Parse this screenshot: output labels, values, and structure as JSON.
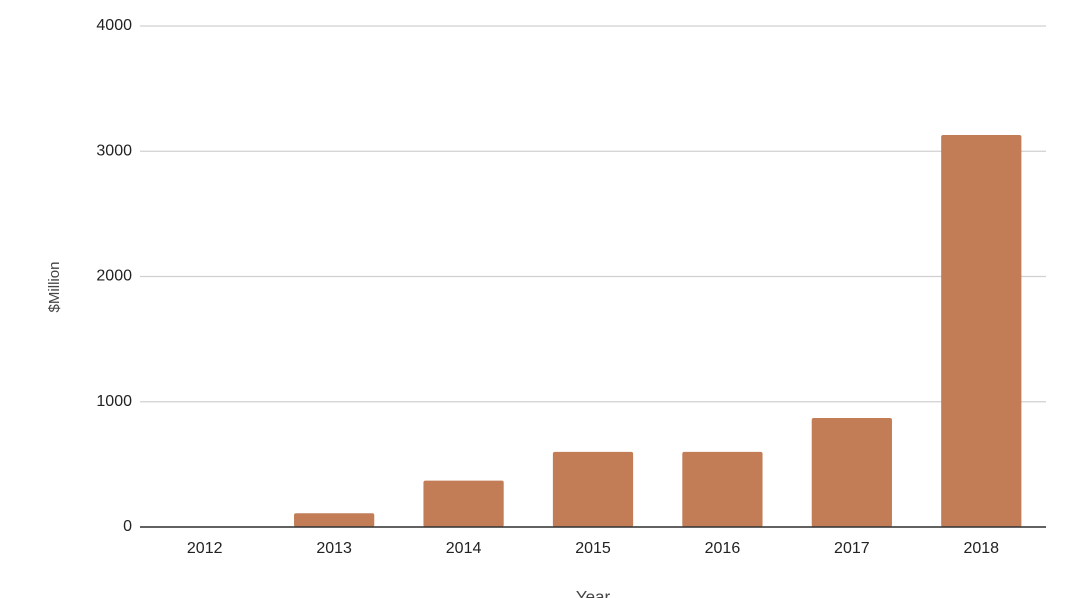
{
  "chart_data": {
    "type": "bar",
    "x_label": "Year",
    "y_label": "$Million",
    "categories": [
      "2012",
      "2013",
      "2014",
      "2015",
      "2016",
      "2017",
      "2018"
    ],
    "values": [
      0,
      110,
      370,
      600,
      600,
      870,
      3130
    ],
    "color": "#c27d56",
    "ylim": [
      0,
      4000
    ],
    "yticks": [
      0,
      1000,
      2000,
      3000,
      4000
    ],
    "grid": true
  }
}
